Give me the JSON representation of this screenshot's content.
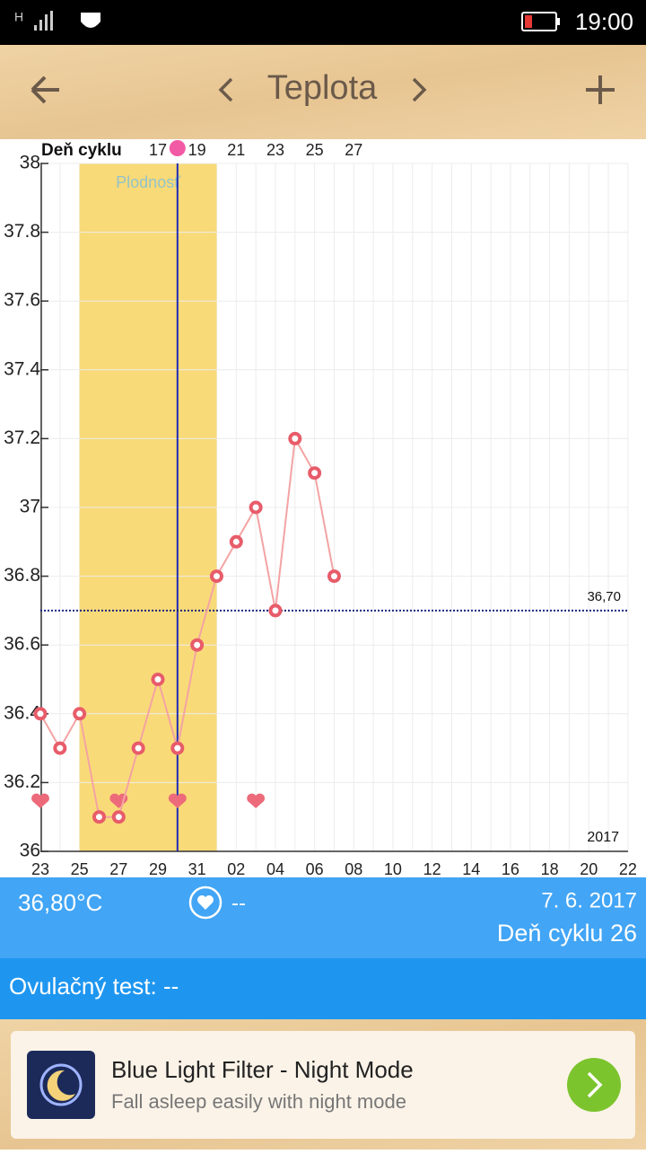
{
  "status_bar": {
    "network": "H",
    "time": "19:00"
  },
  "header": {
    "title": "Teplota"
  },
  "chart_data": {
    "type": "line",
    "cycle_axis_label": "Deň cyklu",
    "categories": [
      "23",
      null,
      "25",
      null,
      "27",
      null,
      "29",
      null,
      "31",
      null,
      "02",
      null,
      "04",
      null,
      "06",
      null,
      "08",
      null,
      "10",
      null,
      "12",
      null,
      "14",
      null,
      "16",
      null,
      "18",
      null,
      "20",
      null,
      "22"
    ],
    "cycle_days": [
      null,
      null,
      null,
      null,
      null,
      null,
      17,
      null,
      19,
      null,
      21,
      null,
      23,
      null,
      25,
      null,
      27,
      null,
      null,
      null,
      null,
      null,
      null,
      null,
      null,
      null,
      null,
      null,
      null,
      null,
      null
    ],
    "values": [
      36.4,
      36.3,
      36.4,
      36.1,
      36.1,
      36.3,
      36.5,
      36.3,
      36.6,
      36.8,
      36.9,
      37.0,
      36.7,
      37.2,
      37.1,
      36.8,
      null,
      null,
      null,
      null,
      null,
      null,
      null,
      null,
      null,
      null,
      null,
      null,
      null,
      null,
      null
    ],
    "color": "#f4a3a3",
    "marker_color": "#e85c6a",
    "ylim": [
      36,
      38
    ],
    "yticks": [
      36,
      36.2,
      36.4,
      36.6,
      36.8,
      37,
      37.2,
      37.4,
      37.6,
      37.8,
      38
    ],
    "grid": true,
    "coverline": {
      "value": 36.7,
      "value_label": "36,70"
    },
    "fertile_window": {
      "label": "Plodnosť",
      "start": 2,
      "end": 9
    },
    "ovulation_index": 7,
    "intercourse_days": [
      0,
      4,
      7,
      11
    ],
    "year": "2017"
  },
  "summary": {
    "temperature": "36,80°C",
    "intercourse": "--",
    "date": "7. 6. 2017",
    "cycle_day": "Deň cyklu 26"
  },
  "ovulation_test": "Ovulačný test: --",
  "ad": {
    "title": "Blue Light Filter - Night Mode",
    "subtitle": "Fall asleep easily with night mode"
  }
}
